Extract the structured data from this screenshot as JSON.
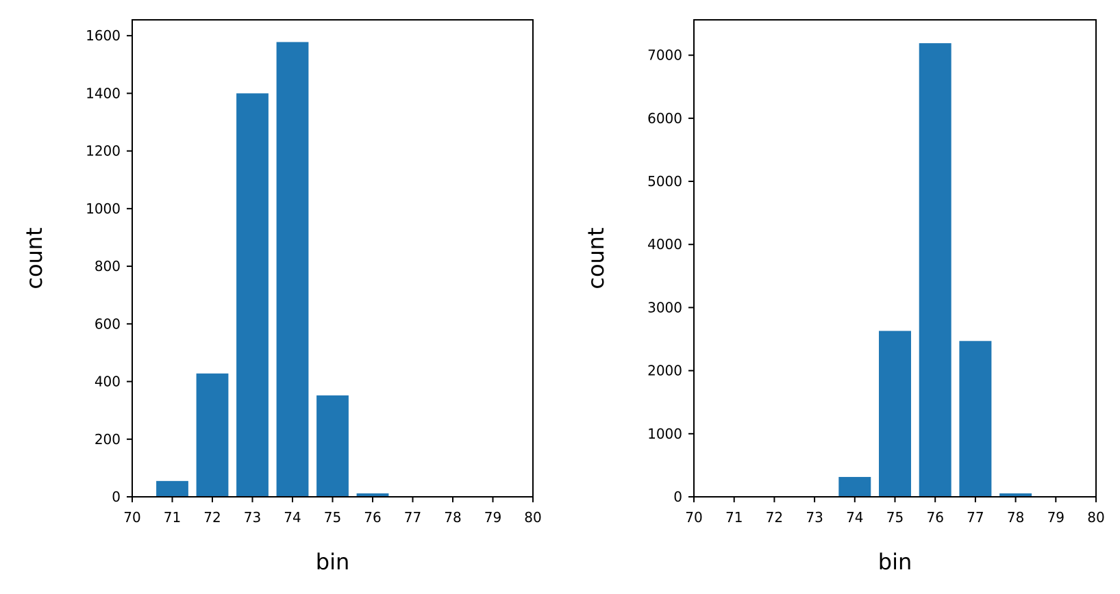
{
  "colors": {
    "bar": "#1f77b4",
    "axis": "#000000",
    "background": "#ffffff"
  },
  "chart_data": [
    {
      "type": "bar",
      "x": [
        71,
        72,
        73,
        74,
        75,
        76,
        77,
        78,
        79
      ],
      "values": [
        55,
        428,
        1400,
        1578,
        352,
        12,
        0,
        0,
        0
      ],
      "bar_width": 0.8,
      "xlim": [
        70,
        80
      ],
      "ylim": [
        0,
        1655
      ],
      "xticks": [
        70,
        71,
        72,
        73,
        74,
        75,
        76,
        77,
        78,
        79,
        80
      ],
      "yticks": [
        0,
        200,
        400,
        600,
        800,
        1000,
        1200,
        1400,
        1600
      ],
      "xlabel": "bin",
      "ylabel": "count",
      "grid": false,
      "legend": "none"
    },
    {
      "type": "bar",
      "x": [
        71,
        72,
        73,
        74,
        75,
        76,
        77,
        78,
        79
      ],
      "values": [
        0,
        0,
        0,
        315,
        2630,
        7190,
        2470,
        55,
        0
      ],
      "bar_width": 0.8,
      "xlim": [
        70,
        80
      ],
      "ylim": [
        0,
        7560
      ],
      "xticks": [
        70,
        71,
        72,
        73,
        74,
        75,
        76,
        77,
        78,
        79,
        80
      ],
      "yticks": [
        0,
        1000,
        2000,
        3000,
        4000,
        5000,
        6000,
        7000
      ],
      "xlabel": "bin",
      "ylabel": "count",
      "grid": false,
      "legend": "none"
    }
  ]
}
